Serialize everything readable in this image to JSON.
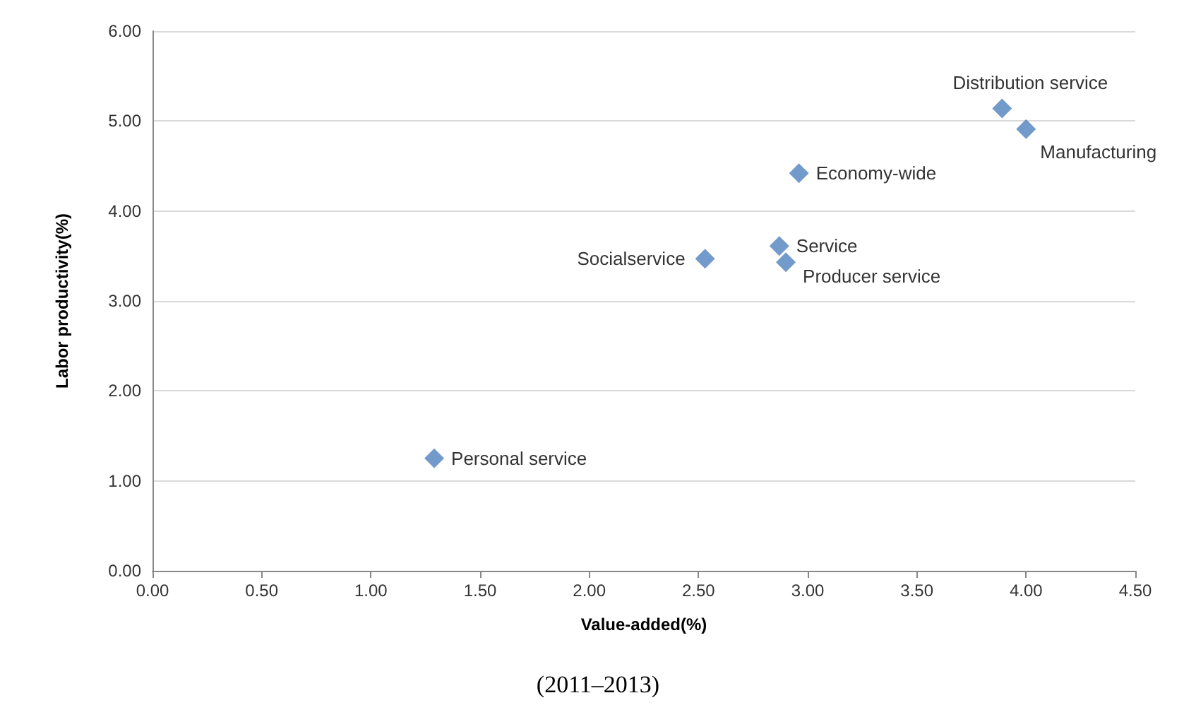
{
  "chart_data": {
    "type": "scatter",
    "xlabel": "Value-added(%)",
    "ylabel": "Labor productivity(%)",
    "x": [
      1.29,
      2.53,
      2.87,
      2.9,
      2.96,
      3.89,
      4.0
    ],
    "series": [
      {
        "color": "#4f81bd",
        "values": [
          1.25,
          3.47,
          3.61,
          3.43,
          4.42,
          5.14,
          4.91
        ]
      }
    ],
    "marker": "diamond",
    "grid": "y",
    "xlim": [
      0,
      4.5
    ],
    "xticks": [
      {
        "value": 0,
        "label": "0.00"
      },
      {
        "value": 0.5,
        "label": "0.50"
      },
      {
        "value": 1,
        "label": "1.00"
      },
      {
        "value": 1.5,
        "label": "1.50"
      },
      {
        "value": 2,
        "label": "2.00"
      },
      {
        "value": 2.5,
        "label": "2.50"
      },
      {
        "value": 3,
        "label": "3.00"
      },
      {
        "value": 3.5,
        "label": "3.50"
      },
      {
        "value": 4,
        "label": "4.00"
      },
      {
        "value": 4.5,
        "label": "4.50"
      }
    ],
    "ylim": [
      0,
      6
    ],
    "yticks": [
      {
        "value": 0,
        "label": "0.00"
      },
      {
        "value": 1,
        "label": "1.00"
      },
      {
        "value": 2,
        "label": "2.00"
      },
      {
        "value": 3,
        "label": "3.00"
      },
      {
        "value": 4,
        "label": "4.00"
      },
      {
        "value": 5,
        "label": "5.00"
      },
      {
        "value": 6,
        "label": "6.00"
      }
    ],
    "annotations": [
      {
        "text": "Personal service",
        "x": 1.29,
        "y": 1.25
      },
      {
        "text": "Socialservice",
        "x": 2.53,
        "y": 3.47
      },
      {
        "text": "Service",
        "x": 2.87,
        "y": 3.61
      },
      {
        "text": "Producer service",
        "x": 2.9,
        "y": 3.43
      },
      {
        "text": "Economy-wide",
        "x": 2.96,
        "y": 4.42
      },
      {
        "text": "Distribution service",
        "x": 3.89,
        "y": 5.14
      },
      {
        "text": "Manufacturing",
        "x": 4.0,
        "y": 4.91
      },
      "(2011–2013)"
    ]
  }
}
